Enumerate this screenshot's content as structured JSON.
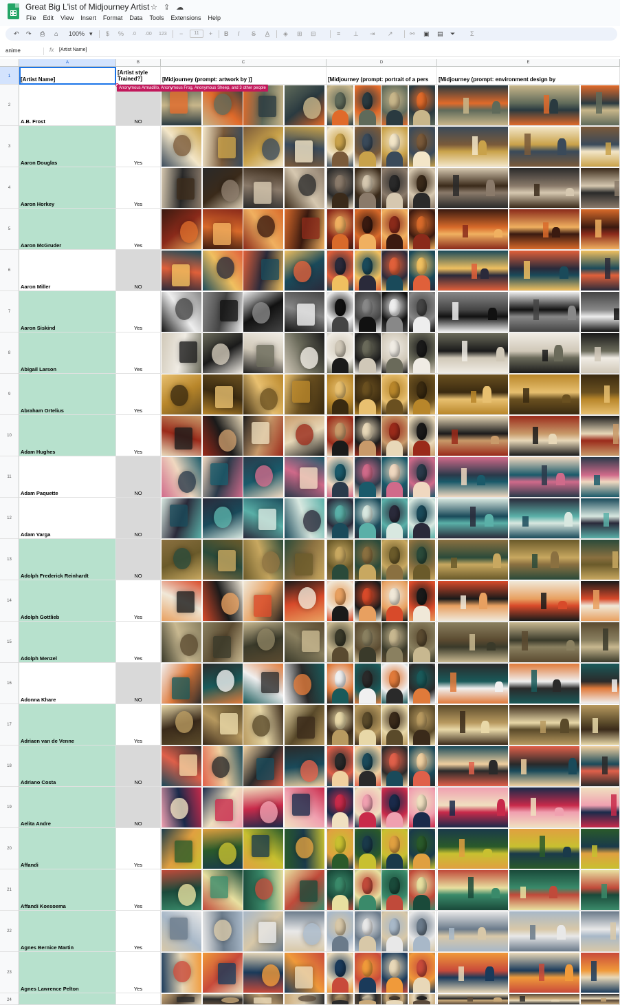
{
  "app": {
    "doc_title": "Great Big L'ist of Midjourney Artist",
    "menu": [
      "File",
      "Edit",
      "View",
      "Insert",
      "Format",
      "Data",
      "Tools",
      "Extensions",
      "Help"
    ]
  },
  "toolbar": {
    "zoom": "100%",
    "currency": "$",
    "percent": "%",
    "dec_decrease": ".0",
    "dec_increase": ".00",
    "number_format": "123",
    "font_size": "11",
    "minus": "−",
    "plus": "+",
    "bold": "B",
    "italic": "I",
    "strike": "S",
    "text_color": "A"
  },
  "formula_bar": {
    "name_box": "anime",
    "fx": "fx",
    "value": "[Artist Name]"
  },
  "columns": [
    "A",
    "B",
    "C",
    "D",
    "E"
  ],
  "header_row": {
    "number": "1",
    "a": "[Artist Name]",
    "b_line1": "[Artist style",
    "b_line2": "Trained?]",
    "c": "[Midjourney (prompt: artwork by <artist full name>)]",
    "d": "[Midjourney (prompt: portrait of a pers",
    "e": "[Midjourney (prompt: environment design by <artist full name>"
  },
  "collaborators": "Anonymous Armadillo, Anonymous Frog, Anonymous Sheep, and 3 other people",
  "rows": [
    {
      "num": "2",
      "name": "A.B. Frost",
      "trained": "NO",
      "green": false,
      "grey": true
    },
    {
      "num": "3",
      "name": "Aaron Douglas",
      "trained": "Yes",
      "green": true,
      "grey": false
    },
    {
      "num": "4",
      "name": "Aaron Horkey",
      "trained": "Yes",
      "green": true,
      "grey": false
    },
    {
      "num": "5",
      "name": "Aaron McGruder",
      "trained": "Yes",
      "green": true,
      "grey": false
    },
    {
      "num": "6",
      "name": "Aaron Miller",
      "trained": "NO",
      "green": false,
      "grey": true
    },
    {
      "num": "7",
      "name": "Aaron Siskind",
      "trained": "Yes",
      "green": true,
      "grey": false
    },
    {
      "num": "8",
      "name": "Abigail Larson",
      "trained": "Yes",
      "green": true,
      "grey": false
    },
    {
      "num": "9",
      "name": "Abraham Ortelius",
      "trained": "Yes",
      "green": true,
      "grey": false
    },
    {
      "num": "10",
      "name": "Adam Hughes",
      "trained": "Yes",
      "green": true,
      "grey": false
    },
    {
      "num": "11",
      "name": "Adam Paquette",
      "trained": "NO",
      "green": false,
      "grey": true
    },
    {
      "num": "12",
      "name": "Adam Varga",
      "trained": "NO",
      "green": false,
      "grey": true
    },
    {
      "num": "13",
      "name": "Adolph Frederick Reinhardt",
      "trained": "NO",
      "green": true,
      "grey": true
    },
    {
      "num": "14",
      "name": "Adolph Gottlieb",
      "trained": "Yes",
      "green": true,
      "grey": false
    },
    {
      "num": "15",
      "name": "Adolph Menzel",
      "trained": "Yes",
      "green": true,
      "grey": false
    },
    {
      "num": "16",
      "name": "Adonna Khare",
      "trained": "NO",
      "green": false,
      "grey": true
    },
    {
      "num": "17",
      "name": "Adriaen van de Venne",
      "trained": "Yes",
      "green": true,
      "grey": false
    },
    {
      "num": "18",
      "name": "Adriano Costa",
      "trained": "NO",
      "green": true,
      "grey": true
    },
    {
      "num": "19",
      "name": "Aelita Andre",
      "trained": "NO",
      "green": true,
      "grey": true
    },
    {
      "num": "20",
      "name": "Affandi",
      "trained": "Yes",
      "green": true,
      "grey": false
    },
    {
      "num": "21",
      "name": "Affandi Koesoema",
      "trained": "Yes",
      "green": true,
      "grey": false
    },
    {
      "num": "22",
      "name": "Agnes Bernice Martin",
      "trained": "Yes",
      "green": true,
      "grey": false
    },
    {
      "num": "23",
      "name": "Agnes Lawrence Pelton",
      "trained": "Yes",
      "green": true,
      "grey": false
    },
    {
      "num": "24",
      "name": "",
      "trained": "",
      "green": true,
      "grey": false
    }
  ],
  "palettes": [
    [
      "#2a3a40",
      "#c8b68a",
      "#e06a2a",
      "#5f6a5a"
    ],
    [
      "#c9a24a",
      "#3a4a5a",
      "#f3e6c8",
      "#7a5a3a"
    ],
    [
      "#3a2a1a",
      "#8a7a6a",
      "#d6c8b0",
      "#2a2a2a"
    ],
    [
      "#8a2a1a",
      "#d86a2a",
      "#f0b060",
      "#3a1a10"
    ],
    [
      "#1a4a5a",
      "#e0603a",
      "#f0c060",
      "#2a2a3a"
    ],
    [
      "#111111",
      "#888888",
      "#eeeeee",
      "#444444"
    ],
    [
      "#1a1a1a",
      "#d0c8b8",
      "#6a6a5a",
      "#f0ece4"
    ],
    [
      "#b8862a",
      "#3a2a10",
      "#e8c070",
      "#6a5020"
    ],
    [
      "#e8d8b8",
      "#9a2a1a",
      "#1a1a1a",
      "#c89a6a"
    ],
    [
      "#1a5a6a",
      "#d06a8a",
      "#f0d8c0",
      "#2a3a4a"
    ],
    [
      "#1a4a5a",
      "#5ab0a8",
      "#d8e8e0",
      "#2a2a3a"
    ],
    [
      "#6a5a2a",
      "#2a4a3a",
      "#c8a860",
      "#8a7040"
    ],
    [
      "#d84a2a",
      "#f0e8d8",
      "#1a1a1a",
      "#e8a060"
    ],
    [
      "#3a3a2a",
      "#8a8060",
      "#c8b890",
      "#5a4a30"
    ],
    [
      "#1a5a5a",
      "#f0f0f0",
      "#2a2a2a",
      "#e07a3a"
    ],
    [
      "#3a2a1a",
      "#b89a60",
      "#e8d8a8",
      "#5a4a2a"
    ],
    [
      "#1a4a5a",
      "#e0604a",
      "#f0d0a0",
      "#2a2a2a"
    ],
    [
      "#c82a4a",
      "#f0a0b0",
      "#1a2a4a",
      "#f0e0c0"
    ],
    [
      "#2a5a2a",
      "#c8c030",
      "#1a3a4a",
      "#e0a040"
    ],
    [
      "#1a4a3a",
      "#e8e0a0",
      "#3a8a6a",
      "#c04a3a"
    ],
    [
      "#e8e8e8",
      "#a8b8c8",
      "#6a7a8a",
      "#d8c8a8"
    ],
    [
      "#1a3a5a",
      "#f09a3a",
      "#e8d8b8",
      "#c84a3a"
    ],
    [
      "#2a2a2a",
      "#c8a878",
      "#e8d8b8",
      "#5a4a3a"
    ]
  ]
}
